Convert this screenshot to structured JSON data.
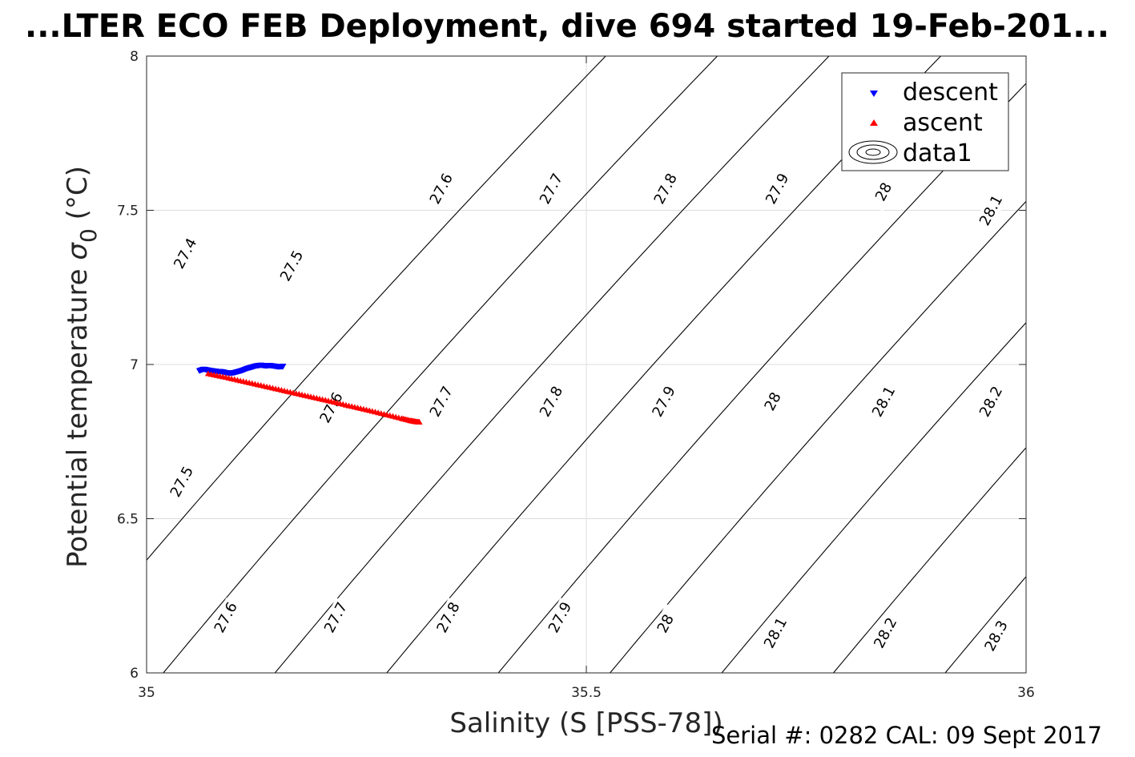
{
  "chart_data": {
    "type": "scatter",
    "title": "...LTER ECO FEB Deployment, dive 694 started 19-Feb-201...",
    "xlabel": "Salinity (S [PSS-78])",
    "ylabel_main": "Potential temperature ",
    "ylabel_symbol": "σ",
    "ylabel_sub": "0",
    "ylabel_unit": " (°C)",
    "xlim": [
      35,
      36
    ],
    "ylim": [
      6,
      8
    ],
    "x_ticks": [
      "35",
      "35.5",
      "36"
    ],
    "y_ticks": [
      "6",
      "6.5",
      "7",
      "7.5",
      "8"
    ],
    "grid": true,
    "legend_position": "top-right",
    "legend": [
      "descent",
      "ascent",
      "data1"
    ],
    "series": [
      {
        "name": "descent",
        "color": "#0000ff",
        "marker": "triangle-down",
        "points": [
          [
            35.06,
            6.98
          ],
          [
            35.065,
            6.985
          ],
          [
            35.07,
            6.982
          ],
          [
            35.075,
            6.98
          ],
          [
            35.08,
            6.978
          ],
          [
            35.085,
            6.977
          ],
          [
            35.09,
            6.974
          ],
          [
            35.095,
            6.972
          ],
          [
            35.1,
            6.974
          ],
          [
            35.105,
            6.978
          ],
          [
            35.11,
            6.982
          ],
          [
            35.115,
            6.988
          ],
          [
            35.12,
            6.992
          ],
          [
            35.125,
            6.996
          ],
          [
            35.13,
            6.998
          ],
          [
            35.135,
            6.996
          ],
          [
            35.14,
            6.997
          ],
          [
            35.145,
            6.995
          ],
          [
            35.15,
            6.993
          ],
          [
            35.155,
            6.994
          ]
        ]
      },
      {
        "name": "ascent",
        "color": "#ff0000",
        "marker": "triangle-up",
        "points": [
          [
            35.07,
            6.97
          ],
          [
            35.09,
            6.958
          ],
          [
            35.11,
            6.945
          ],
          [
            35.13,
            6.932
          ],
          [
            35.15,
            6.919
          ],
          [
            35.17,
            6.906
          ],
          [
            35.19,
            6.893
          ],
          [
            35.21,
            6.88
          ],
          [
            35.23,
            6.866
          ],
          [
            35.25,
            6.853
          ],
          [
            35.27,
            6.839
          ],
          [
            35.29,
            6.825
          ],
          [
            35.3,
            6.818
          ],
          [
            35.305,
            6.815
          ],
          [
            35.31,
            6.813
          ]
        ]
      }
    ],
    "contours": [
      {
        "level": "27.4",
        "labels": [
          [
            35.044,
            7.36
          ]
        ]
      },
      {
        "level": "27.5",
        "labels": [
          [
            35.165,
            7.32
          ],
          [
            35.04,
            6.62
          ]
        ]
      },
      {
        "level": "27.6",
        "labels": [
          [
            35.335,
            7.57
          ],
          [
            35.21,
            6.86
          ],
          [
            35.09,
            6.18
          ]
        ]
      },
      {
        "level": "27.7",
        "labels": [
          [
            35.46,
            7.57
          ],
          [
            35.335,
            6.88
          ],
          [
            35.215,
            6.18
          ]
        ]
      },
      {
        "level": "27.8",
        "labels": [
          [
            35.59,
            7.57
          ],
          [
            35.46,
            6.88
          ],
          [
            35.343,
            6.18
          ]
        ]
      },
      {
        "level": "27.9",
        "labels": [
          [
            35.717,
            7.57
          ],
          [
            35.588,
            6.88
          ],
          [
            35.47,
            6.18
          ]
        ]
      },
      {
        "level": "28",
        "labels": [
          [
            35.838,
            7.56
          ],
          [
            35.712,
            6.88
          ],
          [
            35.59,
            6.16
          ]
        ]
      },
      {
        "level": "28.1",
        "labels": [
          [
            35.96,
            7.5
          ],
          [
            35.838,
            6.88
          ],
          [
            35.715,
            6.13
          ]
        ]
      },
      {
        "level": "28.2",
        "labels": [
          [
            35.96,
            6.88
          ],
          [
            35.84,
            6.13
          ]
        ]
      },
      {
        "level": "28.3",
        "labels": [
          [
            35.966,
            6.12
          ]
        ]
      }
    ]
  },
  "footer": "Serial #: 0282  CAL: 09 Sept 2017"
}
